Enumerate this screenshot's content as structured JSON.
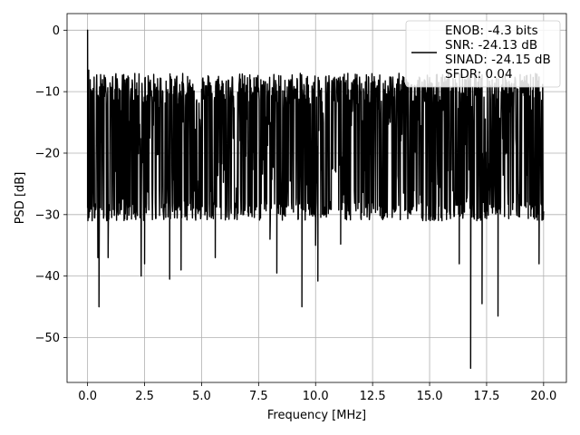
{
  "chart_data": {
    "type": "line",
    "title": "",
    "xlabel": "Frequency [MHz]",
    "ylabel": "PSD [dB]",
    "xlim": [
      -0.9,
      21.0
    ],
    "ylim": [
      -57.3,
      2.7
    ],
    "xticks": [
      0.0,
      2.5,
      5.0,
      7.5,
      10.0,
      12.5,
      15.0,
      17.5,
      20.0
    ],
    "xtick_labels": [
      "0.0",
      "2.5",
      "5.0",
      "7.5",
      "10.0",
      "12.5",
      "15.0",
      "17.5",
      "20.0"
    ],
    "yticks": [
      0,
      -10,
      -20,
      -30,
      -40,
      -50
    ],
    "ytick_labels": [
      "0",
      "−10",
      "−20",
      "−30",
      "−40",
      "−50"
    ],
    "grid": true,
    "legend_position": "top-right",
    "series": [
      {
        "name": "ENOB: -4.3 bits\nSNR: -24.13 dB\nSINAD: -24.15 dB\nSFDR: 0.04",
        "color": "#000000",
        "x_range": [
          0.0,
          20.0
        ],
        "typical_band": [
          -28,
          -12
        ],
        "points": [
          {
            "x": 0.0,
            "y": 0.0
          },
          {
            "x": 0.05,
            "y": -6.5
          },
          {
            "x": 0.1,
            "y": -29.5
          },
          {
            "x": 0.2,
            "y": -31.0
          },
          {
            "x": 0.3,
            "y": -30.5
          },
          {
            "x": 0.45,
            "y": -37.0
          },
          {
            "x": 0.5,
            "y": -45.0
          },
          {
            "x": 0.9,
            "y": -37.0
          },
          {
            "x": 2.35,
            "y": -40.0
          },
          {
            "x": 2.5,
            "y": -38.0
          },
          {
            "x": 3.6,
            "y": -40.5
          },
          {
            "x": 4.1,
            "y": -39.0
          },
          {
            "x": 5.6,
            "y": -37.0
          },
          {
            "x": 8.0,
            "y": -34.0
          },
          {
            "x": 8.3,
            "y": -39.5
          },
          {
            "x": 9.4,
            "y": -45.0
          },
          {
            "x": 10.0,
            "y": -35.0
          },
          {
            "x": 10.1,
            "y": -40.8
          },
          {
            "x": 11.1,
            "y": -34.8
          },
          {
            "x": 16.3,
            "y": -38.0
          },
          {
            "x": 16.8,
            "y": -55.0
          },
          {
            "x": 17.3,
            "y": -44.5
          },
          {
            "x": 18.0,
            "y": -46.5
          },
          {
            "x": 19.8,
            "y": -38.0
          }
        ]
      }
    ]
  }
}
